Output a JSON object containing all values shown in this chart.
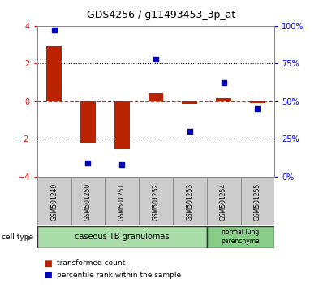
{
  "title": "GDS4256 / g11493453_3p_at",
  "samples": [
    "GSM501249",
    "GSM501250",
    "GSM501251",
    "GSM501252",
    "GSM501253",
    "GSM501254",
    "GSM501255"
  ],
  "transformed_count": [
    2.9,
    -2.2,
    -2.55,
    0.4,
    -0.12,
    0.15,
    -0.08
  ],
  "percentile_rank_raw": [
    97,
    9,
    8,
    78,
    30,
    62,
    45
  ],
  "ylim_left": [
    -4,
    4
  ],
  "ylim_right": [
    0,
    100
  ],
  "bar_color": "#bb2200",
  "dot_color": "#0000bb",
  "hline_color": "#cc3333",
  "grid_color": "#000000",
  "legend_red": "transformed count",
  "legend_blue": "percentile rank within the sample",
  "cell_type_1_label": "caseous TB granulomas",
  "cell_type_1_n": 5,
  "cell_type_1_color": "#aaddaa",
  "cell_type_2_label": "normal lung\nparenchyma",
  "cell_type_2_n": 2,
  "cell_type_2_color": "#88cc88",
  "sample_box_color": "#cccccc",
  "sample_box_edge": "#888888"
}
